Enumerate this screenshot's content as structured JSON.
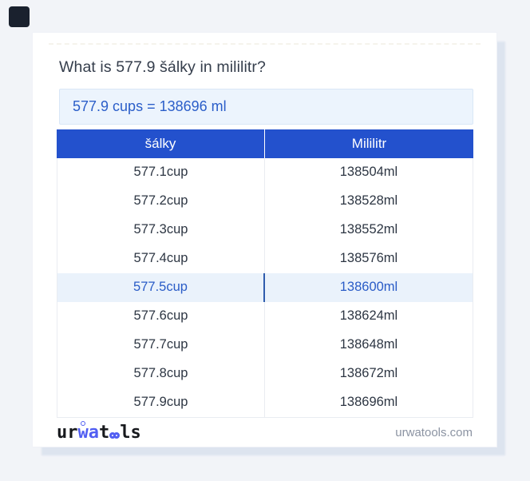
{
  "colors": {
    "page_bg": "#f2f4f8",
    "header_blue": "#2351cd",
    "accent_blue": "#2b5ec9",
    "highlight_row_bg": "#eaf2fb",
    "highlight_text": "#2a5cc7",
    "answer_box_bg": "#ecf4fd",
    "answer_box_border": "#d9e7f6",
    "logo_blue": "#515ef2",
    "footer_text_gray": "#8b93a2",
    "corner_badge": "#1a212e"
  },
  "header": {
    "question": "What is 577.9 šálky in mililitr?"
  },
  "answer": {
    "text": "577.9 cups = 138696 ml"
  },
  "table": {
    "headers": [
      "šálky",
      "Mililitr"
    ],
    "rows": [
      {
        "cup": "577.1cup",
        "ml": "138504ml",
        "highlighted": false
      },
      {
        "cup": "577.2cup",
        "ml": "138528ml",
        "highlighted": false
      },
      {
        "cup": "577.3cup",
        "ml": "138552ml",
        "highlighted": false
      },
      {
        "cup": "577.4cup",
        "ml": "138576ml",
        "highlighted": false
      },
      {
        "cup": "577.5cup",
        "ml": "138600ml",
        "highlighted": true
      },
      {
        "cup": "577.6cup",
        "ml": "138624ml",
        "highlighted": false
      },
      {
        "cup": "577.7cup",
        "ml": "138648ml",
        "highlighted": false
      },
      {
        "cup": "577.8cup",
        "ml": "138672ml",
        "highlighted": false
      },
      {
        "cup": "577.9cup",
        "ml": "138696ml",
        "highlighted": false
      }
    ]
  },
  "footer": {
    "logo": {
      "full": "urwatools",
      "part_ur": "ur",
      "part_wa": "wa",
      "part_t": "t",
      "part_oo": "oo",
      "part_ls": "ls"
    },
    "site": "urwatools.com"
  }
}
